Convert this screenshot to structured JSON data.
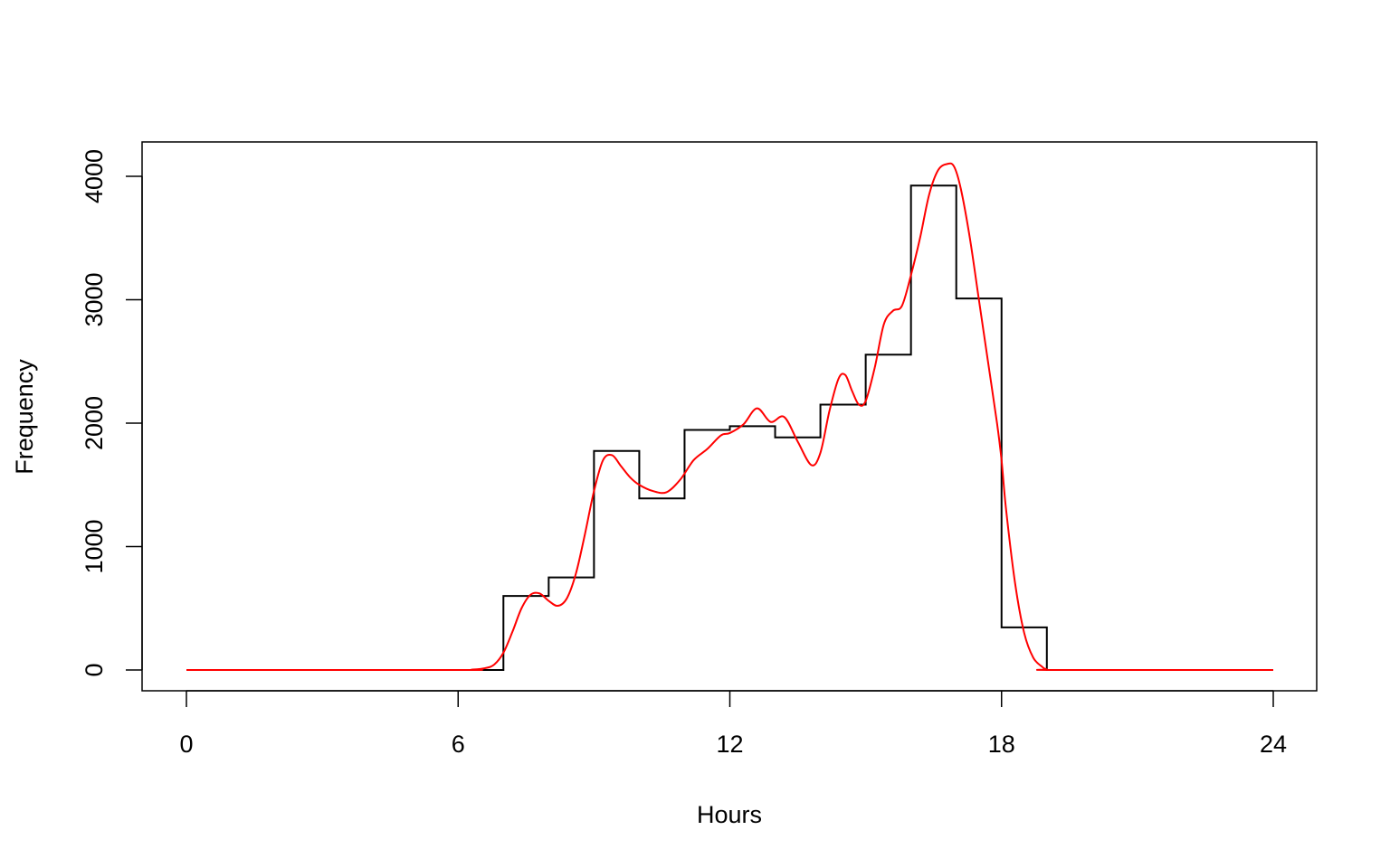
{
  "chart_data": {
    "type": "line",
    "xlabel": "Hours",
    "ylabel": "Frequency",
    "xlim": [
      0,
      24
    ],
    "ylim": [
      0,
      4100
    ],
    "x_ticks": [
      0,
      6,
      12,
      18,
      24
    ],
    "y_ticks": [
      0,
      1000,
      2000,
      3000,
      4000
    ],
    "grid": false,
    "legend": "none",
    "series": [
      {
        "kind": "step",
        "color": "#000000",
        "bins_start": [
          0,
          1,
          2,
          3,
          4,
          5,
          6,
          7,
          8,
          9,
          10,
          11,
          12,
          13,
          14,
          15,
          16,
          17,
          18,
          19,
          20,
          21,
          22,
          23
        ],
        "values": [
          0,
          0,
          0,
          0,
          0,
          0,
          0,
          600,
          750,
          1775,
          1390,
          1945,
          1975,
          1885,
          2150,
          2555,
          3925,
          3010,
          345,
          0,
          0,
          0,
          0,
          0
        ]
      },
      {
        "kind": "smooth",
        "color": "#ff0000",
        "x": [
          0,
          6,
          6.3,
          6.6,
          6.8,
          7.0,
          7.2,
          7.4,
          7.6,
          7.8,
          8.0,
          8.2,
          8.4,
          8.6,
          8.8,
          9.0,
          9.2,
          9.4,
          9.6,
          9.8,
          10.0,
          10.3,
          10.6,
          10.9,
          11.2,
          11.5,
          11.8,
          12.0,
          12.3,
          12.6,
          12.9,
          13.2,
          13.5,
          13.8,
          14.0,
          14.2,
          14.4,
          14.55,
          14.7,
          14.85,
          15.0,
          15.2,
          15.4,
          15.6,
          15.8,
          16.0,
          16.2,
          16.4,
          16.6,
          16.8,
          16.95,
          17.1,
          17.3,
          17.5,
          17.7,
          17.9,
          18.0,
          18.1,
          18.3,
          18.5,
          18.7,
          18.9,
          19.0,
          19.2,
          24
        ],
        "y": [
          0,
          0,
          3,
          15,
          45,
          140,
          310,
          500,
          610,
          620,
          560,
          520,
          580,
          780,
          1100,
          1450,
          1700,
          1740,
          1650,
          1560,
          1500,
          1450,
          1440,
          1540,
          1700,
          1790,
          1900,
          1920,
          1990,
          2120,
          2010,
          2050,
          1850,
          1660,
          1760,
          2100,
          2360,
          2390,
          2260,
          2150,
          2180,
          2450,
          2800,
          2910,
          2950,
          3200,
          3500,
          3850,
          4050,
          4100,
          4080,
          3900,
          3500,
          3000,
          2500,
          2000,
          1700,
          1300,
          700,
          300,
          100,
          25,
          5,
          0,
          0
        ]
      }
    ]
  }
}
